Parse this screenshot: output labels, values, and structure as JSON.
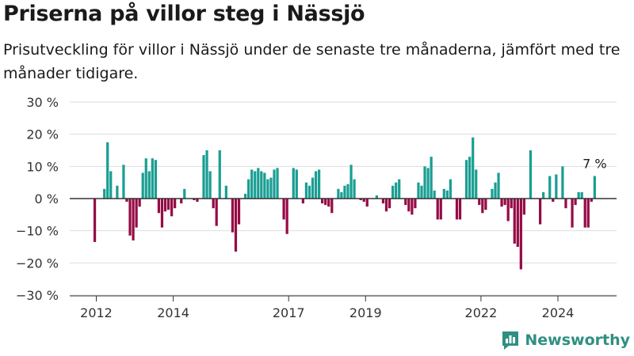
{
  "header": {
    "title": "Priserna på villor steg i Nässjö",
    "subtitle": "Prisutveckling för villor i Nässjö under de senaste tre månaderna, jämfört med tre månader tidigare."
  },
  "brand": {
    "name": "Newsworthy",
    "logo_icon": "bar-chart-logo-icon"
  },
  "colors": {
    "positive": "#1a9e93",
    "negative": "#950b45",
    "grid": "#dddddd",
    "zero_line": "#333333"
  },
  "chart_data": {
    "type": "bar",
    "yticks": [
      "30 %",
      "20 %",
      "10 %",
      "0 %",
      "−10 %",
      "−20 %",
      "−30 %"
    ],
    "ytick_values": [
      30,
      20,
      10,
      0,
      -10,
      -20,
      -30
    ],
    "ylim": [
      -30,
      30
    ],
    "xticks": [
      "2012",
      "2014",
      "2017",
      "2019",
      "2022",
      "2024"
    ],
    "xtick_values": [
      2012.0,
      2014.0,
      2017.0,
      2019.0,
      2022.0,
      2024.0
    ],
    "x_start": 2011.96,
    "x_step": 0.0833,
    "last_label": "7 %",
    "values": [
      -13.5,
      0,
      0,
      3,
      17.5,
      8.5,
      0,
      4,
      0,
      10.5,
      -1,
      -11.5,
      -13,
      -9,
      -2.5,
      8,
      12.5,
      8.5,
      12.5,
      12,
      -4.5,
      -9,
      -4,
      -3.5,
      -5.5,
      -3,
      0,
      -1.5,
      3,
      0,
      0,
      -0.5,
      -1,
      0,
      13.5,
      15,
      8.5,
      -3,
      -8.5,
      15,
      0,
      4,
      0,
      -10.5,
      -16.5,
      -8,
      0,
      1.5,
      6,
      9,
      8.5,
      9.5,
      8.5,
      8,
      6,
      6.5,
      9,
      9.5,
      0,
      -6.5,
      -11,
      0,
      9.5,
      9,
      0,
      -1.5,
      5,
      4,
      6.5,
      8.5,
      9,
      -1.5,
      -2,
      -2.5,
      -4.5,
      0,
      3,
      2,
      4,
      4.5,
      10.5,
      6,
      0,
      -0.5,
      -1,
      -2.5,
      0,
      0,
      1,
      0,
      -1.5,
      -4,
      -3,
      4,
      5,
      6,
      0,
      -2,
      -4,
      -5,
      -3,
      5,
      4,
      10,
      9.5,
      13,
      2.5,
      -6.5,
      -6.5,
      3,
      2.5,
      6,
      0,
      -6.5,
      -6.5,
      0,
      12,
      13,
      19,
      9,
      -2,
      -4.5,
      -3.5,
      0,
      3,
      5,
      8,
      -2.5,
      -2,
      -7,
      -3,
      -14,
      -15,
      -22,
      -5,
      0,
      15,
      0,
      0,
      -8,
      2,
      0,
      7,
      -1,
      7.5,
      0,
      10,
      -3,
      0,
      -9,
      -2,
      2,
      2,
      -9,
      -9,
      -1,
      7
    ]
  }
}
